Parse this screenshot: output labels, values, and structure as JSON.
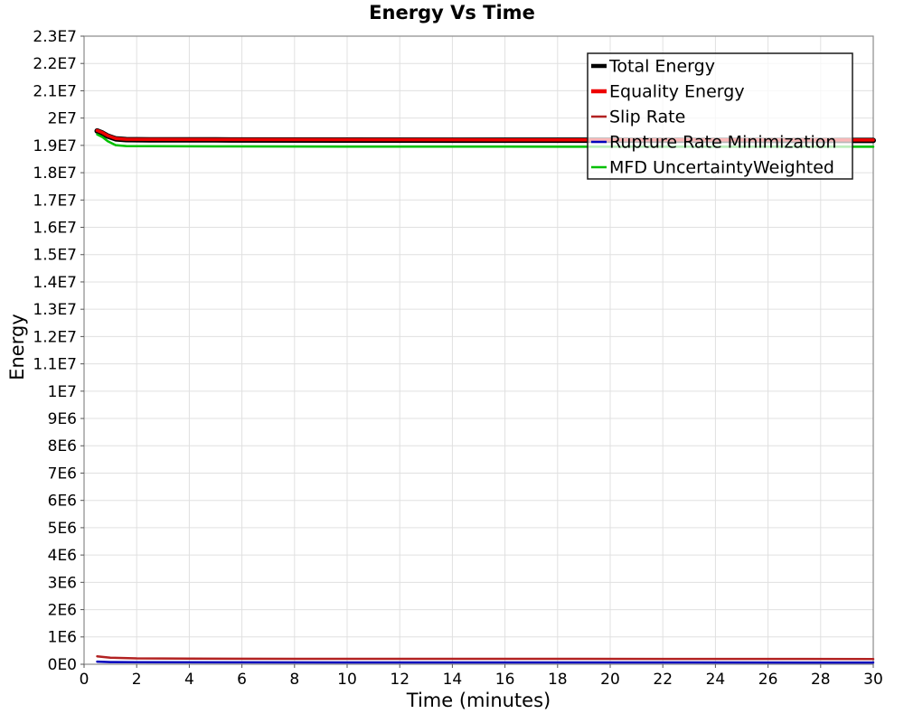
{
  "chart_data": {
    "type": "line",
    "title": "Energy Vs Time",
    "xlabel": "Time (minutes)",
    "ylabel": "Energy",
    "xlim": [
      0,
      30
    ],
    "ylim": [
      0,
      23000000
    ],
    "grid": true,
    "legend_position": "top-right",
    "style": {
      "grid_color": "#e0e0e0",
      "plot_border_color": "#8a8a8a",
      "tick_color": "#555555",
      "tick_label_color": "#000000",
      "legend_border_color": "#1a1a1a",
      "legend_background": "rgba(255,255,255,0.72)"
    },
    "x_ticks": [
      {
        "value": 0,
        "label": "0"
      },
      {
        "value": 2,
        "label": "2"
      },
      {
        "value": 4,
        "label": "4"
      },
      {
        "value": 6,
        "label": "6"
      },
      {
        "value": 8,
        "label": "8"
      },
      {
        "value": 10,
        "label": "10"
      },
      {
        "value": 12,
        "label": "12"
      },
      {
        "value": 14,
        "label": "14"
      },
      {
        "value": 16,
        "label": "16"
      },
      {
        "value": 18,
        "label": "18"
      },
      {
        "value": 20,
        "label": "20"
      },
      {
        "value": 22,
        "label": "22"
      },
      {
        "value": 24,
        "label": "24"
      },
      {
        "value": 26,
        "label": "26"
      },
      {
        "value": 28,
        "label": "28"
      },
      {
        "value": 30,
        "label": "30"
      }
    ],
    "y_ticks": [
      {
        "value": 0,
        "label": "0E0"
      },
      {
        "value": 1000000,
        "label": "1E6"
      },
      {
        "value": 2000000,
        "label": "2E6"
      },
      {
        "value": 3000000,
        "label": "3E6"
      },
      {
        "value": 4000000,
        "label": "4E6"
      },
      {
        "value": 5000000,
        "label": "5E6"
      },
      {
        "value": 6000000,
        "label": "6E6"
      },
      {
        "value": 7000000,
        "label": "7E6"
      },
      {
        "value": 8000000,
        "label": "8E6"
      },
      {
        "value": 9000000,
        "label": "9E6"
      },
      {
        "value": 10000000,
        "label": "1E7"
      },
      {
        "value": 11000000,
        "label": "1.1E7"
      },
      {
        "value": 12000000,
        "label": "1.2E7"
      },
      {
        "value": 13000000,
        "label": "1.3E7"
      },
      {
        "value": 14000000,
        "label": "1.4E7"
      },
      {
        "value": 15000000,
        "label": "1.5E7"
      },
      {
        "value": 16000000,
        "label": "1.6E7"
      },
      {
        "value": 17000000,
        "label": "1.7E7"
      },
      {
        "value": 18000000,
        "label": "1.8E7"
      },
      {
        "value": 19000000,
        "label": "1.9E7"
      },
      {
        "value": 20000000,
        "label": "2E7"
      },
      {
        "value": 21000000,
        "label": "2.1E7"
      },
      {
        "value": 22000000,
        "label": "2.2E7"
      },
      {
        "value": 23000000,
        "label": "2.3E7"
      }
    ],
    "series": [
      {
        "name": "Total Energy",
        "color": "#000000",
        "width": 6,
        "legend_width": 4.5,
        "points": [
          [
            0.5,
            19530000
          ],
          [
            0.7,
            19450000
          ],
          [
            0.9,
            19340000
          ],
          [
            1.2,
            19240000
          ],
          [
            1.6,
            19210000
          ],
          [
            2.5,
            19205000
          ],
          [
            5,
            19200000
          ],
          [
            10,
            19195000
          ],
          [
            16,
            19190000
          ],
          [
            23,
            19185000
          ],
          [
            30,
            19182000
          ]
        ]
      },
      {
        "name": "Equality Energy",
        "color": "#ee0000",
        "width": 3.5,
        "legend_width": 4.5,
        "points": [
          [
            0.5,
            19545000
          ],
          [
            0.7,
            19465000
          ],
          [
            0.9,
            19355000
          ],
          [
            1.2,
            19255000
          ],
          [
            1.6,
            19225000
          ],
          [
            2.5,
            19220000
          ],
          [
            5,
            19215000
          ],
          [
            10,
            19210000
          ],
          [
            16,
            19205000
          ],
          [
            23,
            19200000
          ],
          [
            30,
            19197000
          ]
        ]
      },
      {
        "name": "Slip Rate",
        "color": "#b22222",
        "width": 2.5,
        "legend_width": 2.5,
        "points": [
          [
            0.5,
            290000
          ],
          [
            1,
            240000
          ],
          [
            2,
            215000
          ],
          [
            4,
            205000
          ],
          [
            8,
            200000
          ],
          [
            14,
            197000
          ],
          [
            22,
            194000
          ],
          [
            30,
            192000
          ]
        ]
      },
      {
        "name": "Rupture Rate Minimization",
        "color": "#0000bb",
        "width": 2.5,
        "legend_width": 2.5,
        "points": [
          [
            0.5,
            95000
          ],
          [
            1,
            80000
          ],
          [
            2,
            72000
          ],
          [
            6,
            68000
          ],
          [
            14,
            66000
          ],
          [
            22,
            65000
          ],
          [
            30,
            64000
          ]
        ]
      },
      {
        "name": "MFD UncertaintyWeighted",
        "color": "#00c000",
        "width": 2.5,
        "legend_width": 2.5,
        "points": [
          [
            0.5,
            19400000
          ],
          [
            0.7,
            19300000
          ],
          [
            0.9,
            19150000
          ],
          [
            1.2,
            19010000
          ],
          [
            1.6,
            18975000
          ],
          [
            2.5,
            18968000
          ],
          [
            5,
            18962000
          ],
          [
            10,
            18957000
          ],
          [
            16,
            18953000
          ],
          [
            23,
            18950000
          ],
          [
            30,
            18948000
          ]
        ]
      }
    ]
  }
}
